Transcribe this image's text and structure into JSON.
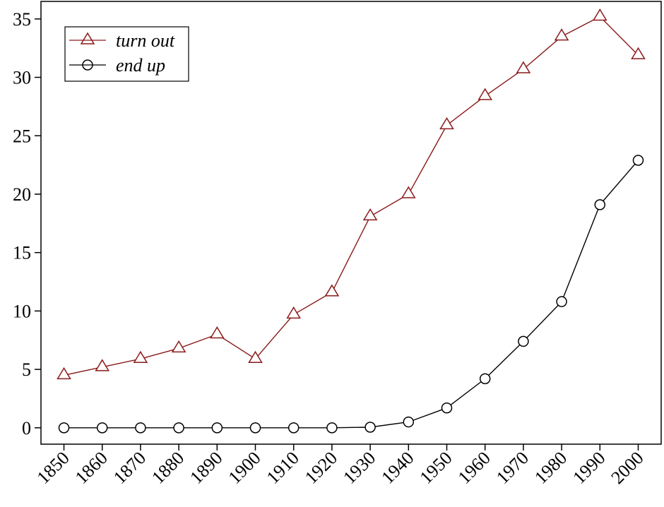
{
  "chart_data": {
    "type": "line",
    "title": "",
    "xlabel": "",
    "ylabel": "",
    "categories": [
      "1850",
      "1860",
      "1870",
      "1880",
      "1890",
      "1900",
      "1910",
      "1920",
      "1930",
      "1940",
      "1950",
      "1960",
      "1970",
      "1980",
      "1990",
      "2000"
    ],
    "x": [
      1850,
      1860,
      1870,
      1880,
      1890,
      1900,
      1910,
      1920,
      1930,
      1940,
      1950,
      1960,
      1970,
      1980,
      1990,
      2000
    ],
    "xlim": [
      1844,
      2006
    ],
    "ylim": [
      -1.4,
      36.5
    ],
    "yticks": [
      0,
      5,
      10,
      15,
      20,
      25,
      30,
      35
    ],
    "y_tick_labels": [
      "0",
      "5",
      "10",
      "15",
      "20",
      "25",
      "30",
      "35"
    ],
    "grid": false,
    "legend_position": "top-left",
    "series": [
      {
        "name": "turn out",
        "color": "#8b1a1a",
        "marker": "triangle",
        "values": [
          4.5,
          5.2,
          5.9,
          6.8,
          8.0,
          5.9,
          9.7,
          11.6,
          18.1,
          20.0,
          25.9,
          28.4,
          30.7,
          33.5,
          35.2,
          31.9
        ]
      },
      {
        "name": "end up",
        "color": "#000000",
        "marker": "circle",
        "values": [
          0,
          0,
          0,
          0,
          0,
          0,
          0,
          0,
          0.05,
          0.5,
          1.7,
          4.2,
          7.4,
          10.8,
          19.1,
          22.9
        ]
      }
    ]
  }
}
